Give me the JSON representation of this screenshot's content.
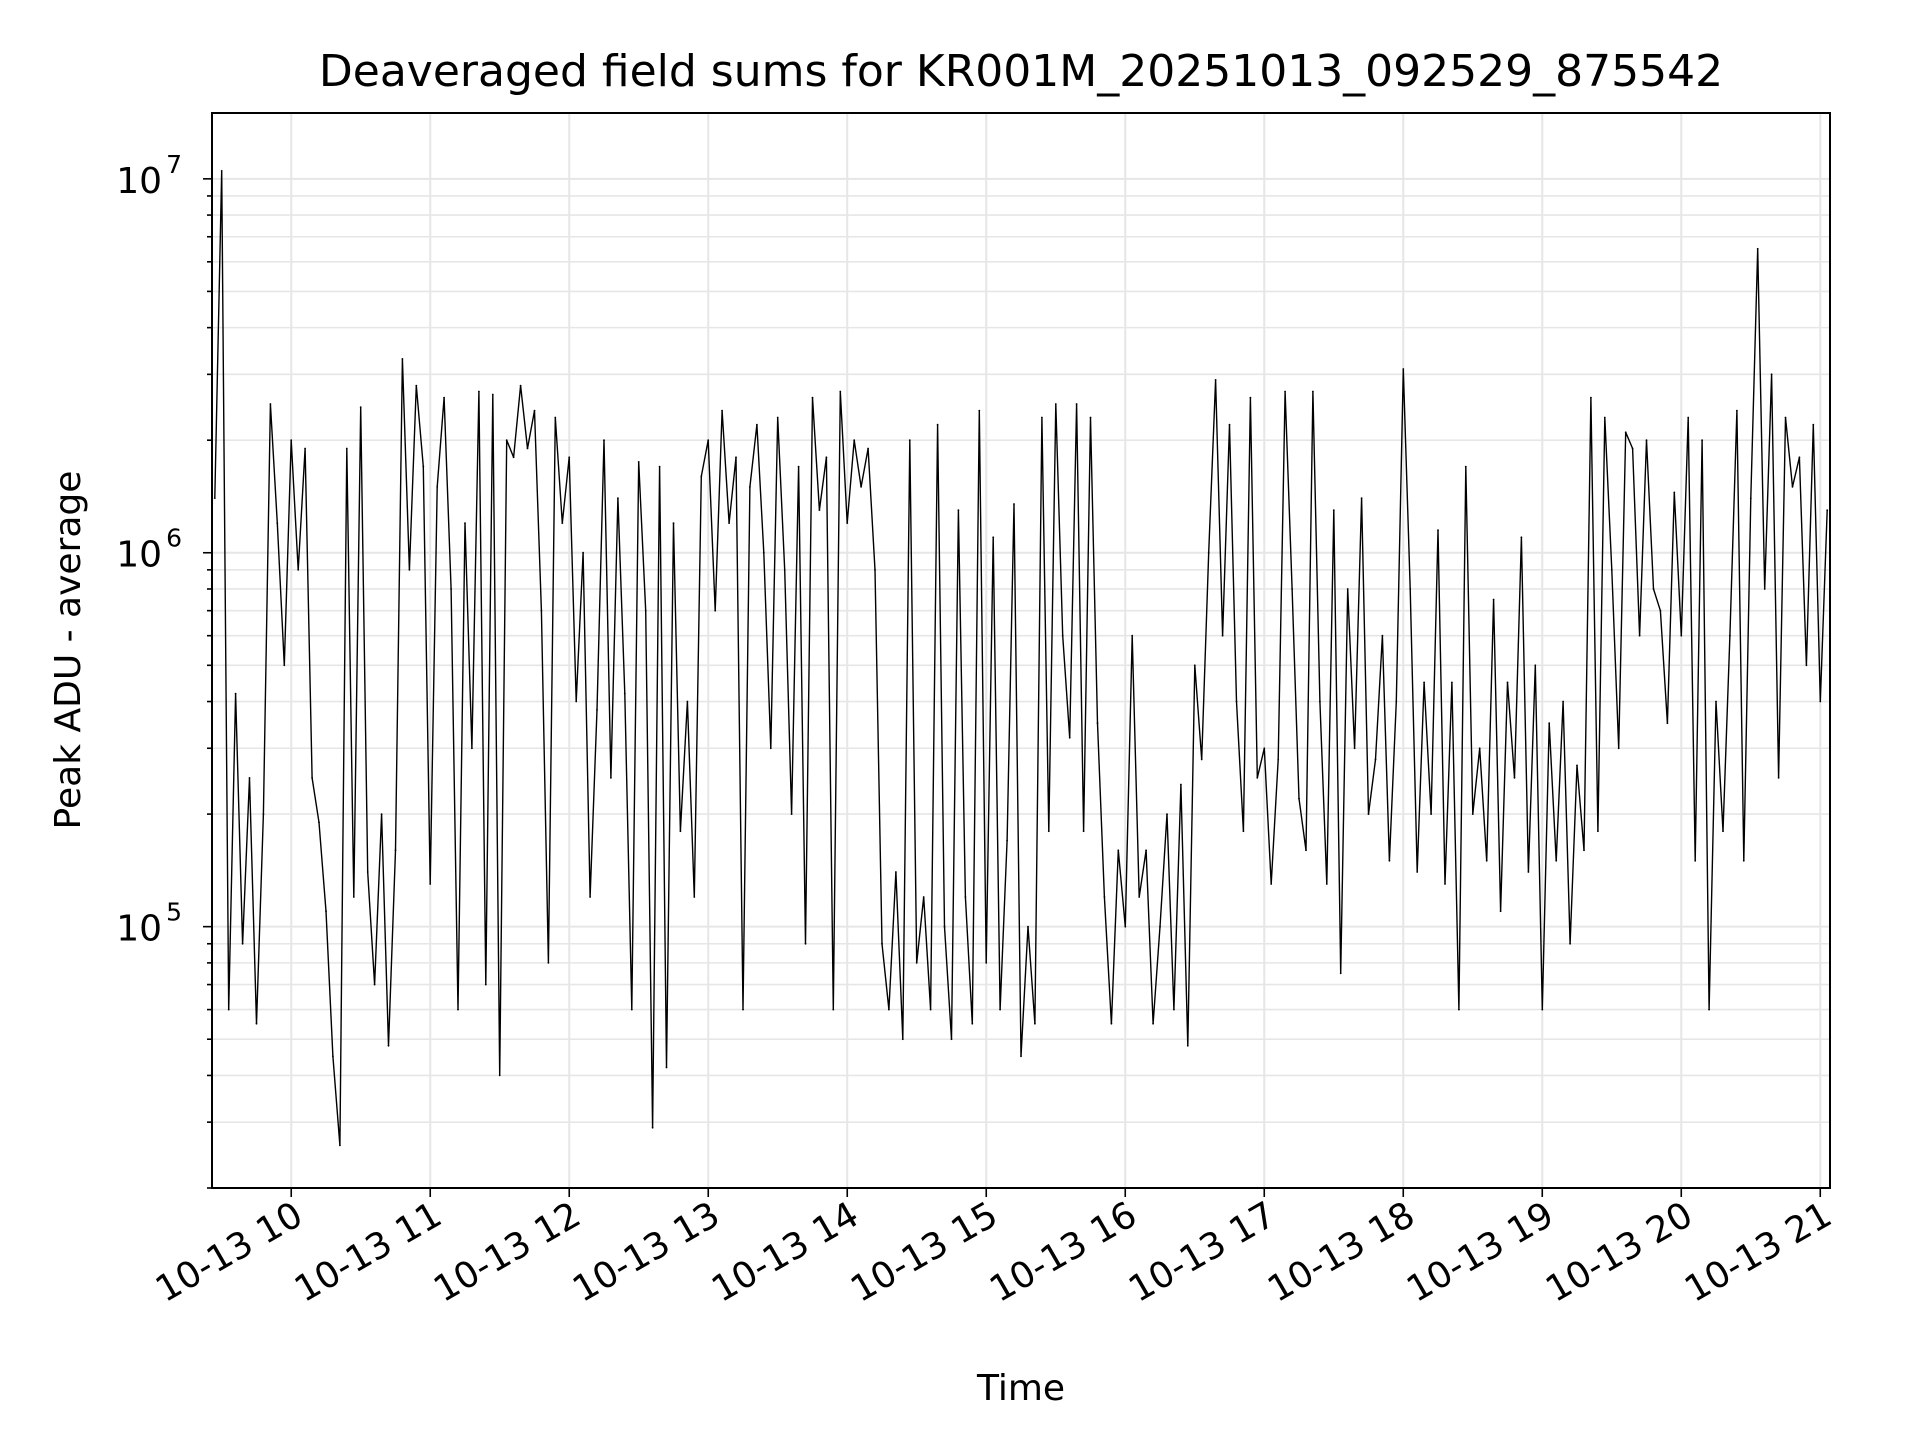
{
  "chart_data": {
    "type": "line",
    "title": "Deaveraged field sums for KR001M_20251013_092529_875542",
    "xlabel": "Time",
    "ylabel": "Peak ADU - average",
    "yscale": "log",
    "ylim": [
      20000,
      15000000
    ],
    "xlim_hours": [
      9.43,
      21.07
    ],
    "grid": true,
    "series_color": "#000000",
    "grid_color": "#e6e6e6",
    "x_ticks": [
      {
        "label": "10-13 10",
        "hour": 10
      },
      {
        "label": "10-13 11",
        "hour": 11
      },
      {
        "label": "10-13 12",
        "hour": 12
      },
      {
        "label": "10-13 13",
        "hour": 13
      },
      {
        "label": "10-13 14",
        "hour": 14
      },
      {
        "label": "10-13 15",
        "hour": 15
      },
      {
        "label": "10-13 16",
        "hour": 16
      },
      {
        "label": "10-13 17",
        "hour": 17
      },
      {
        "label": "10-13 18",
        "hour": 18
      },
      {
        "label": "10-13 19",
        "hour": 19
      },
      {
        "label": "10-13 20",
        "hour": 20
      },
      {
        "label": "10-13 21",
        "hour": 21
      }
    ],
    "y_ticks": [
      {
        "base": "10",
        "exp": "5",
        "value": 100000
      },
      {
        "base": "10",
        "exp": "6",
        "value": 1000000
      },
      {
        "base": "10",
        "exp": "7",
        "value": 10000000
      }
    ],
    "series": [
      {
        "name": "deaveraged field sum",
        "x_hours": [
          9.45,
          9.5,
          9.55,
          9.6,
          9.65,
          9.7,
          9.75,
          9.8,
          9.85,
          9.9,
          9.95,
          10.0,
          10.05,
          10.1,
          10.15,
          10.2,
          10.25,
          10.3,
          10.35,
          10.4,
          10.45,
          10.5,
          10.55,
          10.6,
          10.65,
          10.7,
          10.75,
          10.8,
          10.85,
          10.9,
          10.95,
          11.0,
          11.05,
          11.1,
          11.15,
          11.2,
          11.25,
          11.3,
          11.35,
          11.4,
          11.45,
          11.5,
          11.55,
          11.6,
          11.65,
          11.7,
          11.75,
          11.8,
          11.85,
          11.9,
          11.95,
          12.0,
          12.05,
          12.1,
          12.15,
          12.2,
          12.25,
          12.3,
          12.35,
          12.4,
          12.45,
          12.5,
          12.55,
          12.6,
          12.65,
          12.7,
          12.75,
          12.8,
          12.85,
          12.9,
          12.95,
          13.0,
          13.05,
          13.1,
          13.15,
          13.2,
          13.25,
          13.3,
          13.35,
          13.4,
          13.45,
          13.5,
          13.55,
          13.6,
          13.65,
          13.7,
          13.75,
          13.8,
          13.85,
          13.9,
          13.95,
          14.0,
          14.05,
          14.1,
          14.15,
          14.2,
          14.25,
          14.3,
          14.35,
          14.4,
          14.45,
          14.5,
          14.55,
          14.6,
          14.65,
          14.7,
          14.75,
          14.8,
          14.85,
          14.9,
          14.95,
          15.0,
          15.05,
          15.1,
          15.15,
          15.2,
          15.25,
          15.3,
          15.35,
          15.4,
          15.45,
          15.5,
          15.55,
          15.6,
          15.65,
          15.7,
          15.75,
          15.8,
          15.85,
          15.9,
          15.95,
          16.0,
          16.05,
          16.1,
          16.15,
          16.2,
          16.25,
          16.3,
          16.35,
          16.4,
          16.45,
          16.5,
          16.55,
          16.6,
          16.65,
          16.7,
          16.75,
          16.8,
          16.85,
          16.9,
          16.95,
          17.0,
          17.05,
          17.1,
          17.15,
          17.2,
          17.25,
          17.3,
          17.35,
          17.4,
          17.45,
          17.5,
          17.55,
          17.6,
          17.65,
          17.7,
          17.75,
          17.8,
          17.85,
          17.9,
          17.95,
          18.0,
          18.05,
          18.1,
          18.15,
          18.2,
          18.25,
          18.3,
          18.35,
          18.4,
          18.45,
          18.5,
          18.55,
          18.6,
          18.65,
          18.7,
          18.75,
          18.8,
          18.85,
          18.9,
          18.95,
          19.0,
          19.05,
          19.1,
          19.15,
          19.2,
          19.25,
          19.3,
          19.35,
          19.4,
          19.45,
          19.5,
          19.55,
          19.6,
          19.65,
          19.7,
          19.75,
          19.8,
          19.85,
          19.9,
          19.95,
          20.0,
          20.05,
          20.1,
          20.15,
          20.2,
          20.25,
          20.3,
          20.35,
          20.4,
          20.45,
          20.5,
          20.55,
          20.6,
          20.65,
          20.7,
          20.75,
          20.8,
          20.85,
          20.9,
          20.95,
          21.0,
          21.05
        ],
        "values": [
          1400000,
          10500000,
          60000,
          420000,
          90000,
          250000,
          55000,
          200000,
          2500000,
          1200000,
          500000,
          2000000,
          900000,
          1900000,
          250000,
          190000,
          110000,
          45000,
          26000,
          1900000,
          120000,
          2450000,
          140000,
          70000,
          200000,
          48000,
          160000,
          3300000,
          900000,
          2800000,
          1700000,
          130000,
          1500000,
          2600000,
          800000,
          60000,
          1200000,
          300000,
          2700000,
          70000,
          2650000,
          40000,
          2000000,
          1800000,
          2800000,
          1900000,
          2400000,
          700000,
          80000,
          2300000,
          1200000,
          1800000,
          400000,
          1000000,
          120000,
          380000,
          2000000,
          250000,
          1400000,
          420000,
          60000,
          1750000,
          700000,
          29000,
          1700000,
          42000,
          1200000,
          180000,
          400000,
          120000,
          1600000,
          2000000,
          700000,
          2400000,
          1200000,
          1800000,
          60000,
          1500000,
          2200000,
          1000000,
          300000,
          2300000,
          900000,
          200000,
          1700000,
          90000,
          2600000,
          1300000,
          1800000,
          60000,
          2700000,
          1200000,
          2000000,
          1500000,
          1900000,
          900000,
          90000,
          60000,
          140000,
          50000,
          2000000,
          80000,
          120000,
          60000,
          2200000,
          100000,
          50000,
          1300000,
          120000,
          55000,
          2400000,
          80000,
          1100000,
          60000,
          170000,
          1350000,
          45000,
          100000,
          55000,
          2300000,
          180000,
          2500000,
          600000,
          320000,
          2500000,
          180000,
          2300000,
          350000,
          120000,
          55000,
          160000,
          100000,
          600000,
          120000,
          160000,
          55000,
          100000,
          200000,
          60000,
          240000,
          48000,
          500000,
          280000,
          1000000,
          2900000,
          600000,
          2200000,
          400000,
          180000,
          2600000,
          250000,
          300000,
          130000,
          280000,
          2700000,
          800000,
          220000,
          160000,
          2700000,
          400000,
          130000,
          1300000,
          75000,
          800000,
          300000,
          1400000,
          200000,
          280000,
          600000,
          150000,
          400000,
          3100000,
          800000,
          140000,
          450000,
          200000,
          1150000,
          130000,
          450000,
          60000,
          1700000,
          200000,
          300000,
          150000,
          750000,
          110000,
          450000,
          250000,
          1100000,
          140000,
          500000,
          60000,
          350000,
          150000,
          400000,
          90000,
          270000,
          160000,
          2600000,
          180000,
          2300000,
          900000,
          300000,
          2100000,
          1900000,
          600000,
          2000000,
          800000,
          700000,
          350000,
          1450000,
          600000,
          2300000,
          150000,
          2000000,
          60000,
          400000,
          180000,
          600000,
          2400000,
          150000,
          1400000,
          6500000,
          800000,
          3000000,
          250000,
          2300000,
          1500000,
          1800000,
          500000,
          2200000,
          400000,
          1300000
        ]
      }
    ]
  }
}
